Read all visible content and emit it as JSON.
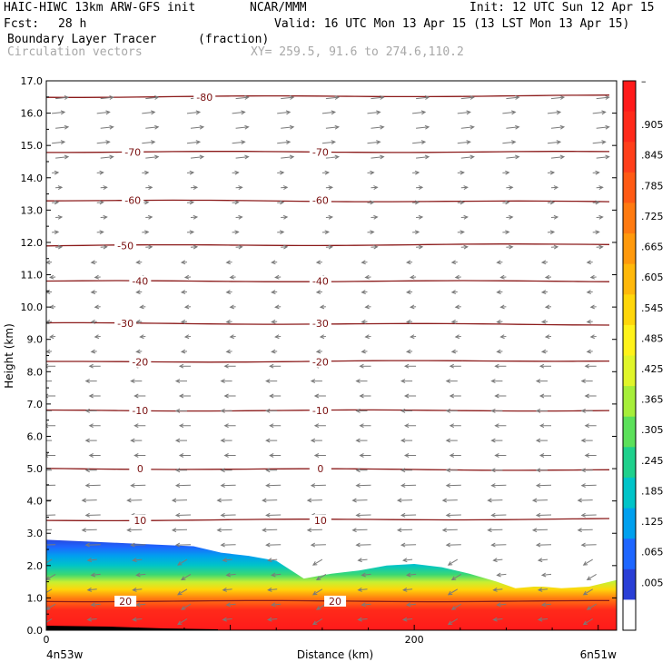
{
  "header": {
    "model": "HAIC-HIWC 13km ARW-GFS init",
    "org": "NCAR/MMM",
    "init": "Init: 12 UTC Sun 12 Apr 15",
    "fcst_label": "Fcst:",
    "fcst_value": "28 h",
    "valid": "Valid: 16 UTC Mon 13 Apr 15 (13 LST Mon 13 Apr 15)",
    "field": "Boundary Layer Tracer",
    "units": "(fraction)",
    "vectors": "Circulation vectors",
    "xy": "XY= 259.5, 91.6 to 274.6,110.2"
  },
  "chart_data": {
    "type": "heatmap",
    "xlabel": "Distance (km)",
    "ylabel": "Height (km)",
    "ylim": [
      0,
      17
    ],
    "xlim": [
      0,
      310
    ],
    "y_ticks": [
      "0.0",
      "1.0",
      "2.0",
      "3.0",
      "4.0",
      "5.0",
      "6.0",
      "7.0",
      "8.0",
      "9.0",
      "10.0",
      "11.0",
      "12.0",
      "13.0",
      "14.0",
      "15.0",
      "16.0",
      "17.0"
    ],
    "x_ticks": [
      {
        "value": 0,
        "label": "0"
      },
      {
        "value": 200,
        "label": "200"
      }
    ],
    "x_end_labels": {
      "left": "4n53w",
      "right": "6n51w"
    },
    "colorbar": {
      "labels": [
        "–",
        ".905",
        ".845",
        ".785",
        ".725",
        ".665",
        ".605",
        ".545",
        ".485",
        ".425",
        ".365",
        ".305",
        ".245",
        ".185",
        ".125",
        ".065",
        ".005"
      ],
      "colors": [
        "#ff1a1a",
        "#ff2a1a",
        "#ff3f1a",
        "#ff5a14",
        "#ff7a10",
        "#ff990c",
        "#ffb80a",
        "#ffd60a",
        "#fff21a",
        "#e0f52a",
        "#a6ee3a",
        "#5ce05a",
        "#1fd08c",
        "#00c4c8",
        "#00a0ee",
        "#1e66ff",
        "#2a3fd6",
        "#ffffff"
      ]
    },
    "temperature_contours": [
      {
        "label": "-80",
        "height": 16.5
      },
      {
        "label": "-70",
        "height": 14.8
      },
      {
        "label": "-60",
        "height": 13.3
      },
      {
        "label": "-50",
        "height": 11.9
      },
      {
        "label": "-40",
        "height": 10.8
      },
      {
        "label": "-30",
        "height": 9.5
      },
      {
        "label": "-20",
        "height": 8.3
      },
      {
        "label": "-10",
        "height": 6.8
      },
      {
        "label": "0",
        "height": 5.0
      },
      {
        "label": "10",
        "height": 3.4
      },
      {
        "label": "20",
        "height": 0.9
      }
    ],
    "label_positions": [
      {
        "label": "-80",
        "x": [
          86
        ]
      },
      {
        "label": "-70",
        "x": [
          47,
          149
        ]
      },
      {
        "label": "-60",
        "x": [
          47,
          149
        ]
      },
      {
        "label": "-50",
        "x": [
          43
        ]
      },
      {
        "label": "-40",
        "x": [
          51,
          149
        ]
      },
      {
        "label": "-30",
        "x": [
          43,
          149
        ]
      },
      {
        "label": "-20",
        "x": [
          51,
          149
        ]
      },
      {
        "label": "-10",
        "x": [
          51,
          149
        ]
      },
      {
        "label": "0",
        "x": [
          51,
          149
        ]
      },
      {
        "label": "10",
        "x": [
          51,
          149
        ]
      },
      {
        "label": "20",
        "x": [
          43,
          157
        ]
      }
    ],
    "boundary_layer_top": [
      {
        "x": 0,
        "h": 2.8
      },
      {
        "x": 20,
        "h": 2.75
      },
      {
        "x": 40,
        "h": 2.7
      },
      {
        "x": 60,
        "h": 2.65
      },
      {
        "x": 80,
        "h": 2.6
      },
      {
        "x": 95,
        "h": 2.4
      },
      {
        "x": 110,
        "h": 2.3
      },
      {
        "x": 125,
        "h": 2.15
      },
      {
        "x": 140,
        "h": 1.6
      },
      {
        "x": 155,
        "h": 1.75
      },
      {
        "x": 170,
        "h": 1.85
      },
      {
        "x": 185,
        "h": 2.0
      },
      {
        "x": 200,
        "h": 2.05
      },
      {
        "x": 215,
        "h": 1.95
      },
      {
        "x": 230,
        "h": 1.75
      },
      {
        "x": 245,
        "h": 1.5
      },
      {
        "x": 255,
        "h": 1.3
      },
      {
        "x": 265,
        "h": 1.35
      },
      {
        "x": 270,
        "h": 1.35
      },
      {
        "x": 280,
        "h": 1.3
      },
      {
        "x": 295,
        "h": 1.35
      },
      {
        "x": 310,
        "h": 1.55
      }
    ]
  }
}
